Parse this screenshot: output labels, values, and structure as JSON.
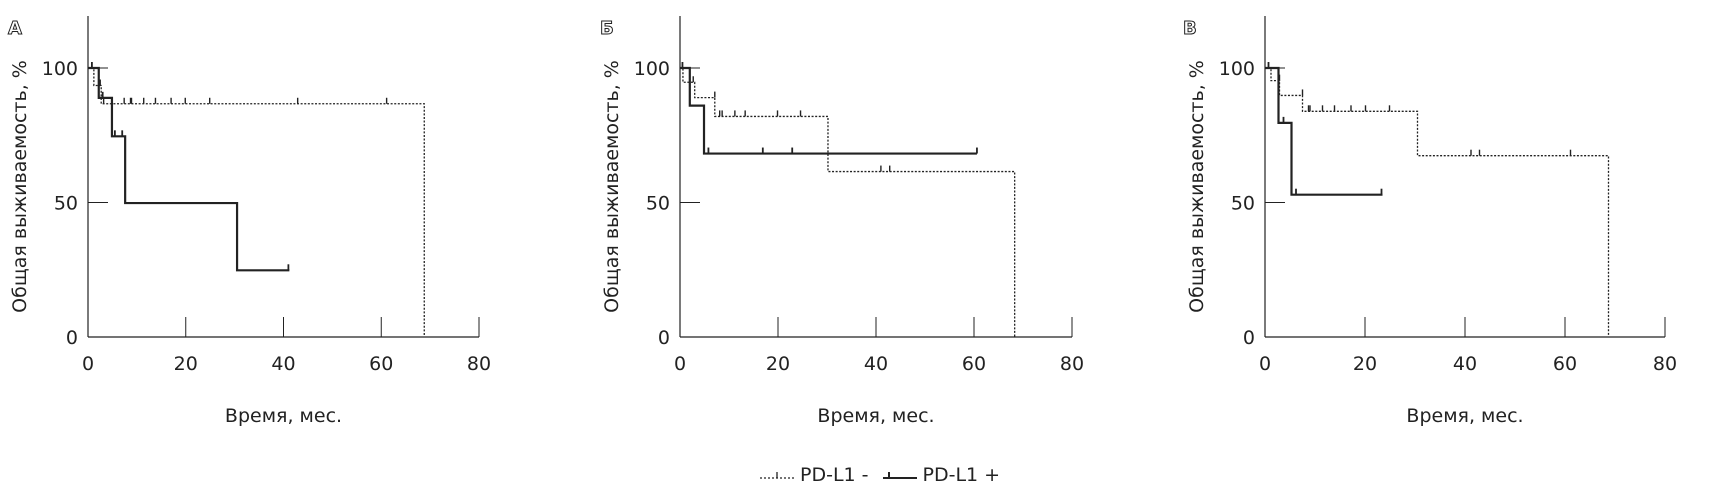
{
  "chart_data": [
    {
      "type": "line",
      "subtype": "kaplan-meier",
      "panel_label": "А",
      "xlabel": "Время, мес.",
      "ylabel": "Общая выживаемость, %",
      "xlim": [
        0,
        80
      ],
      "ylim": [
        0,
        100
      ],
      "xticks": [
        0,
        20,
        40,
        60,
        80
      ],
      "yticks": [
        0,
        50,
        100
      ],
      "series": [
        {
          "name": "PD-L1 -",
          "style": "dotted",
          "steps": [
            [
              0,
              100
            ],
            [
              1.2,
              93.5
            ],
            [
              2.7,
              86.7
            ],
            [
              68.8,
              0
            ]
          ],
          "end": 68.8,
          "censored": [
            [
              2.5,
              93.5
            ],
            [
              3.2,
              86.7
            ],
            [
              7.4,
              86.7
            ],
            [
              8.7,
              86.7
            ],
            [
              8.9,
              86.7
            ],
            [
              11.4,
              86.7
            ],
            [
              13.8,
              86.7
            ],
            [
              17.0,
              86.7
            ],
            [
              19.9,
              86.7
            ],
            [
              24.9,
              86.7
            ],
            [
              42.9,
              86.7
            ],
            [
              61.1,
              86.7
            ]
          ]
        },
        {
          "name": "PD-L1 +",
          "style": "solid",
          "steps": [
            [
              0,
              100
            ],
            [
              2.2,
              88.9
            ],
            [
              4.9,
              74.6
            ],
            [
              7.6,
              49.8
            ],
            [
              30.5,
              24.8
            ]
          ],
          "end": 41.2,
          "censored": [
            [
              0.8,
              100
            ],
            [
              3.0,
              88.9
            ],
            [
              5.5,
              74.6
            ],
            [
              7.0,
              74.6
            ],
            [
              41.0,
              24.8
            ]
          ]
        }
      ]
    },
    {
      "type": "line",
      "subtype": "kaplan-meier",
      "panel_label": "Б",
      "xlabel": "Время, мес.",
      "ylabel": "Общая выживаемость, %",
      "xlim": [
        0,
        80
      ],
      "ylim": [
        0,
        100
      ],
      "xticks": [
        0,
        20,
        40,
        60,
        80
      ],
      "yticks": [
        0,
        50,
        100
      ],
      "series": [
        {
          "name": "PD-L1 -",
          "style": "dotted",
          "steps": [
            [
              0,
              100
            ],
            [
              0.6,
              94.7
            ],
            [
              3.0,
              89.0
            ],
            [
              7.1,
              82.0
            ],
            [
              30.2,
              61.5
            ],
            [
              68.3,
              0
            ]
          ],
          "end": 68.3,
          "censored": [
            [
              2.7,
              94.7
            ],
            [
              7.1,
              89.0
            ],
            [
              8.1,
              82.0
            ],
            [
              8.6,
              82.0
            ],
            [
              11.2,
              82.0
            ],
            [
              13.3,
              82.0
            ],
            [
              19.9,
              82.0
            ],
            [
              24.6,
              82.0
            ],
            [
              41.0,
              61.5
            ],
            [
              42.8,
              61.5
            ]
          ]
        },
        {
          "name": "PD-L1 +",
          "style": "solid",
          "steps": [
            [
              0,
              100
            ],
            [
              2.0,
              86.0
            ],
            [
              4.9,
              68.2
            ]
          ],
          "end": 60.6,
          "censored": [
            [
              0.5,
              100
            ],
            [
              5.8,
              68.2
            ],
            [
              16.9,
              68.2
            ],
            [
              22.9,
              68.2
            ],
            [
              60.6,
              68.2
            ]
          ]
        }
      ]
    },
    {
      "type": "line",
      "subtype": "kaplan-meier",
      "panel_label": "В",
      "xlabel": "Время, мес.",
      "ylabel": "Общая выживаемость, %",
      "xlim": [
        0,
        80
      ],
      "ylim": [
        0,
        100
      ],
      "xticks": [
        0,
        20,
        40,
        60,
        80
      ],
      "yticks": [
        0,
        50,
        100
      ],
      "series": [
        {
          "name": "PD-L1 -",
          "style": "dotted",
          "steps": [
            [
              0,
              100
            ],
            [
              1.2,
              95.3
            ],
            [
              2.9,
              89.8
            ],
            [
              7.5,
              83.9
            ],
            [
              30.5,
              67.4
            ],
            [
              68.7,
              0
            ]
          ],
          "end": 68.7,
          "censored": [
            [
              2.9,
              95.3
            ],
            [
              7.5,
              89.8
            ],
            [
              8.7,
              83.9
            ],
            [
              9.0,
              83.9
            ],
            [
              11.5,
              83.9
            ],
            [
              13.9,
              83.9
            ],
            [
              17.2,
              83.9
            ],
            [
              20.1,
              83.9
            ],
            [
              24.9,
              83.9
            ],
            [
              41.2,
              67.4
            ],
            [
              42.9,
              67.4
            ],
            [
              61.1,
              67.4
            ]
          ]
        },
        {
          "name": "PD-L1 +",
          "style": "solid",
          "steps": [
            [
              0,
              100
            ],
            [
              2.7,
              79.6
            ],
            [
              5.3,
              52.9
            ]
          ],
          "end": 23.5,
          "censored": [
            [
              0.7,
              100
            ],
            [
              3.7,
              79.6
            ],
            [
              6.2,
              52.9
            ],
            [
              23.3,
              52.9
            ]
          ]
        }
      ]
    }
  ],
  "legend": {
    "items": [
      {
        "label": "PD-L1 -",
        "style": "dotted"
      },
      {
        "label": "PD-L1 +",
        "style": "solid"
      }
    ],
    "placement": "bottom-center"
  },
  "colors": {
    "ink": "#222222"
  }
}
